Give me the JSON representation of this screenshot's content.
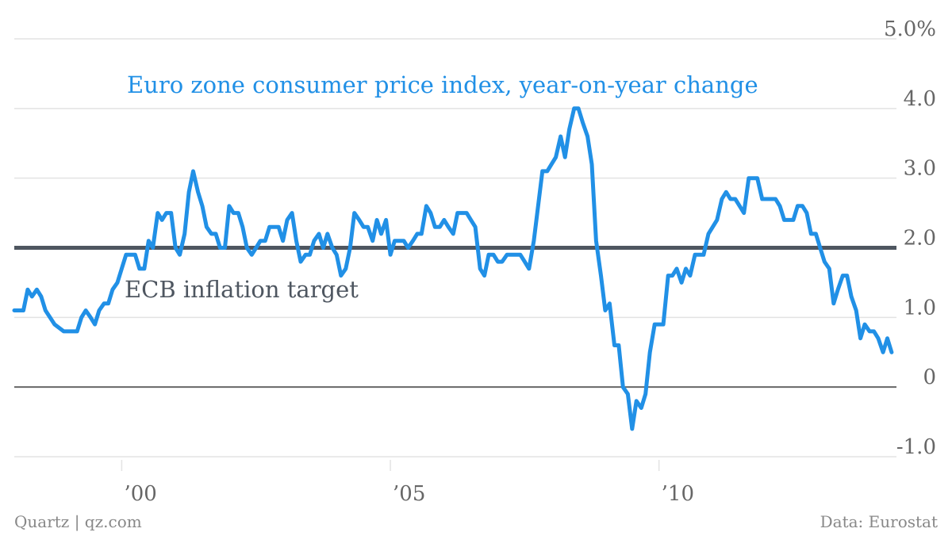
{
  "colors": {
    "series": "#2190e6",
    "target": "#4e5660",
    "grid": "#e3e3e3",
    "axis_text": "#666666",
    "zero_line": "#666666"
  },
  "footer": {
    "source_left": "Quartz | qz.com",
    "source_right": "Data: Eurostat"
  },
  "chart_data": {
    "type": "line",
    "title": "Euro zone consumer price index, year-on-year change",
    "xlabel": "",
    "ylabel": "",
    "ylim": [
      -1.0,
      5.0
    ],
    "y_ticks": [
      {
        "value": 5.0,
        "label": "5.0%"
      },
      {
        "value": 4.0,
        "label": "4.0"
      },
      {
        "value": 3.0,
        "label": "3.0"
      },
      {
        "value": 2.0,
        "label": "2.0"
      },
      {
        "value": 1.0,
        "label": "1.0"
      },
      {
        "value": 0,
        "label": "0"
      },
      {
        "value": -1.0,
        "label": "-1.0"
      }
    ],
    "x_ticks": [
      {
        "value": 2000.0,
        "label": "’00"
      },
      {
        "value": 2005.0,
        "label": "’05"
      },
      {
        "value": 2010.0,
        "label": "’10"
      }
    ],
    "xlim": [
      1998.0,
      2014.42
    ],
    "grid": true,
    "annotations": [
      {
        "text": "ECB inflation target",
        "y": 2.0
      }
    ],
    "reference_line": {
      "name": "ECB inflation target",
      "y": 2.0
    },
    "series": [
      {
        "x": [
          1998.0,
          1998.17,
          1998.25,
          1998.33,
          1998.42,
          1998.5,
          1998.58,
          1998.75,
          1998.92,
          1999.0,
          1999.08,
          1999.17,
          1999.25,
          1999.33,
          1999.42,
          1999.5,
          1999.58,
          1999.67,
          1999.75,
          1999.83,
          1999.92,
          2000.0,
          2000.08,
          2000.17,
          2000.25,
          2000.33,
          2000.42,
          2000.5,
          2000.58,
          2000.67,
          2000.75,
          2000.83,
          2000.92,
          2001.0,
          2001.08,
          2001.17,
          2001.25,
          2001.33,
          2001.42,
          2001.5,
          2001.58,
          2001.67,
          2001.75,
          2001.83,
          2001.92,
          2002.0,
          2002.08,
          2002.17,
          2002.25,
          2002.33,
          2002.42,
          2002.5,
          2002.58,
          2002.67,
          2002.75,
          2002.83,
          2002.92,
          2003.0,
          2003.08,
          2003.17,
          2003.25,
          2003.33,
          2003.42,
          2003.5,
          2003.58,
          2003.67,
          2003.75,
          2003.83,
          2003.92,
          2004.0,
          2004.08,
          2004.17,
          2004.25,
          2004.33,
          2004.42,
          2004.5,
          2004.58,
          2004.67,
          2004.75,
          2004.83,
          2004.92,
          2005.0,
          2005.08,
          2005.17,
          2005.25,
          2005.33,
          2005.42,
          2005.5,
          2005.58,
          2005.67,
          2005.75,
          2005.83,
          2005.92,
          2006.0,
          2006.08,
          2006.17,
          2006.25,
          2006.33,
          2006.42,
          2006.5,
          2006.58,
          2006.67,
          2006.75,
          2006.83,
          2006.92,
          2007.0,
          2007.08,
          2007.17,
          2007.25,
          2007.33,
          2007.42,
          2007.5,
          2007.58,
          2007.67,
          2007.75,
          2007.83,
          2007.92,
          2008.0,
          2008.08,
          2008.17,
          2008.25,
          2008.33,
          2008.42,
          2008.5,
          2008.58,
          2008.67,
          2008.75,
          2008.83,
          2008.92,
          2009.0,
          2009.08,
          2009.17,
          2009.25,
          2009.33,
          2009.42,
          2009.5,
          2009.58,
          2009.67,
          2009.75,
          2009.83,
          2009.92,
          2010.0,
          2010.08,
          2010.17,
          2010.25,
          2010.33,
          2010.42,
          2010.5,
          2010.58,
          2010.67,
          2010.75,
          2010.83,
          2010.92,
          2011.0,
          2011.08,
          2011.17,
          2011.25,
          2011.33,
          2011.42,
          2011.5,
          2011.58,
          2011.67,
          2011.75,
          2011.83,
          2011.92,
          2012.0,
          2012.08,
          2012.17,
          2012.25,
          2012.33,
          2012.42,
          2012.5,
          2012.58,
          2012.67,
          2012.75,
          2012.83,
          2012.92,
          2013.0,
          2013.08,
          2013.17,
          2013.25,
          2013.33,
          2013.42,
          2013.5,
          2013.58,
          2013.67,
          2013.75,
          2013.83,
          2013.92,
          2014.0,
          2014.08,
          2014.17,
          2014.25,
          2014.33
        ],
        "y": [
          1.1,
          1.1,
          1.4,
          1.3,
          1.4,
          1.3,
          1.1,
          0.9,
          0.8,
          0.8,
          0.8,
          0.8,
          1.0,
          1.1,
          1.0,
          0.9,
          1.1,
          1.2,
          1.2,
          1.4,
          1.5,
          1.7,
          1.9,
          1.9,
          1.9,
          1.7,
          1.7,
          2.1,
          2.0,
          2.5,
          2.4,
          2.5,
          2.5,
          2.0,
          1.9,
          2.2,
          2.8,
          3.1,
          2.8,
          2.6,
          2.3,
          2.2,
          2.2,
          2.0,
          2.0,
          2.6,
          2.5,
          2.5,
          2.3,
          2.0,
          1.9,
          2.0,
          2.1,
          2.1,
          2.3,
          2.3,
          2.3,
          2.1,
          2.4,
          2.5,
          2.1,
          1.8,
          1.9,
          1.9,
          2.1,
          2.2,
          2.0,
          2.2,
          2.0,
          1.9,
          1.6,
          1.7,
          2.0,
          2.5,
          2.4,
          2.3,
          2.3,
          2.1,
          2.4,
          2.2,
          2.4,
          1.9,
          2.1,
          2.1,
          2.1,
          2.0,
          2.1,
          2.2,
          2.2,
          2.6,
          2.5,
          2.3,
          2.3,
          2.4,
          2.3,
          2.2,
          2.5,
          2.5,
          2.5,
          2.4,
          2.3,
          1.7,
          1.6,
          1.9,
          1.9,
          1.8,
          1.8,
          1.9,
          1.9,
          1.9,
          1.9,
          1.8,
          1.7,
          2.1,
          2.6,
          3.1,
          3.1,
          3.2,
          3.3,
          3.6,
          3.3,
          3.7,
          4.0,
          4.0,
          3.8,
          3.6,
          3.2,
          2.1,
          1.6,
          1.1,
          1.2,
          0.6,
          0.6,
          0.0,
          -0.1,
          -0.6,
          -0.2,
          -0.3,
          -0.1,
          0.5,
          0.9,
          0.9,
          0.9,
          1.6,
          1.6,
          1.7,
          1.5,
          1.7,
          1.6,
          1.9,
          1.9,
          1.9,
          2.2,
          2.3,
          2.4,
          2.7,
          2.8,
          2.7,
          2.7,
          2.6,
          2.5,
          3.0,
          3.0,
          3.0,
          2.7,
          2.7,
          2.7,
          2.7,
          2.6,
          2.4,
          2.4,
          2.4,
          2.6,
          2.6,
          2.5,
          2.2,
          2.2,
          2.0,
          1.8,
          1.7,
          1.2,
          1.4,
          1.6,
          1.6,
          1.3,
          1.1,
          0.7,
          0.9,
          0.8,
          0.8,
          0.7,
          0.5,
          0.7,
          0.5
        ]
      }
    ]
  }
}
